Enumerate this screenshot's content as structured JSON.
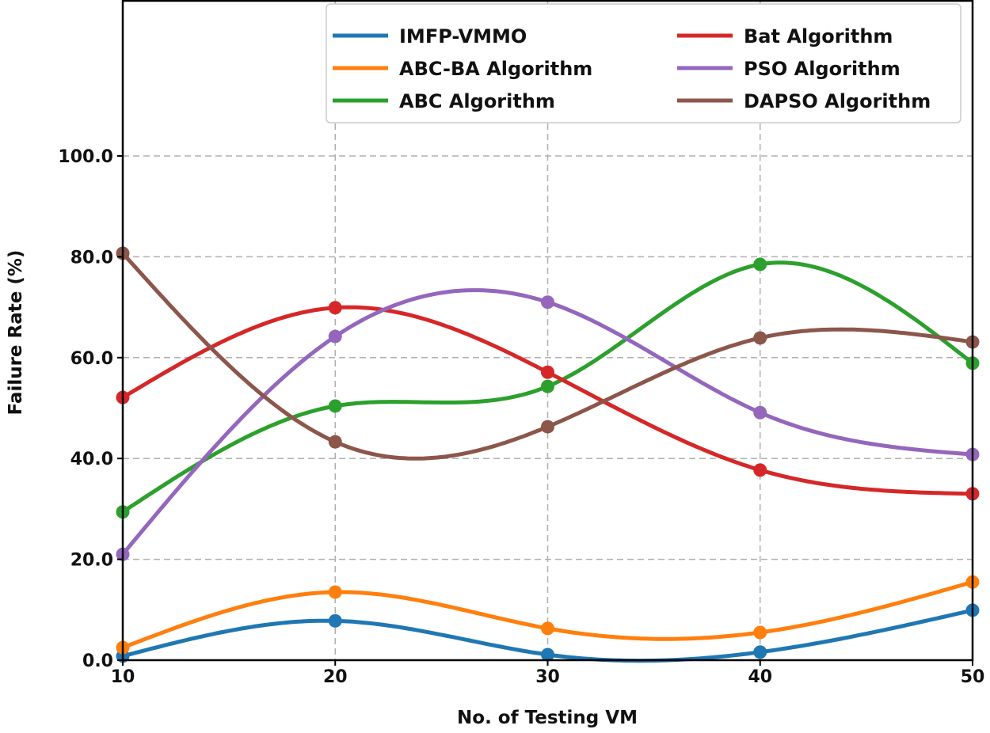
{
  "chart_data": {
    "type": "line",
    "title": "",
    "xlabel": "No. of Testing VM",
    "ylabel": "Failure Rate (%)",
    "x": [
      10,
      20,
      30,
      40,
      50
    ],
    "x_ticks": [
      "10",
      "20",
      "30",
      "40",
      "50"
    ],
    "y_ticks": [
      "0.0",
      "20.0",
      "40.0",
      "60.0",
      "80.0",
      "100.0"
    ],
    "xlim": [
      10,
      50
    ],
    "ylim": [
      0,
      130
    ],
    "grid": true,
    "smoothed": true,
    "markers": true,
    "legend_position": "top-right",
    "series": [
      {
        "name": "IMFP-VMMO",
        "color": "#1f77b4",
        "values": [
          0.8,
          7.8,
          1.1,
          1.6,
          9.9
        ]
      },
      {
        "name": "ABC-BA Algorithm",
        "color": "#ff7f0e",
        "values": [
          2.5,
          13.5,
          6.3,
          5.5,
          15.5
        ]
      },
      {
        "name": "ABC Algorithm",
        "color": "#2ca02c",
        "values": [
          29.4,
          50.4,
          54.3,
          78.5,
          58.9
        ]
      },
      {
        "name": "Bat Algorithm",
        "color": "#d62728",
        "values": [
          52.1,
          69.9,
          57.1,
          37.7,
          33.0
        ]
      },
      {
        "name": "PSO Algorithm",
        "color": "#9467bd",
        "values": [
          21.0,
          64.2,
          71.0,
          49.1,
          40.8
        ]
      },
      {
        "name": "DAPSO Algorithm",
        "color": "#8c564b",
        "values": [
          80.7,
          43.3,
          46.3,
          63.9,
          63.1
        ]
      }
    ]
  }
}
